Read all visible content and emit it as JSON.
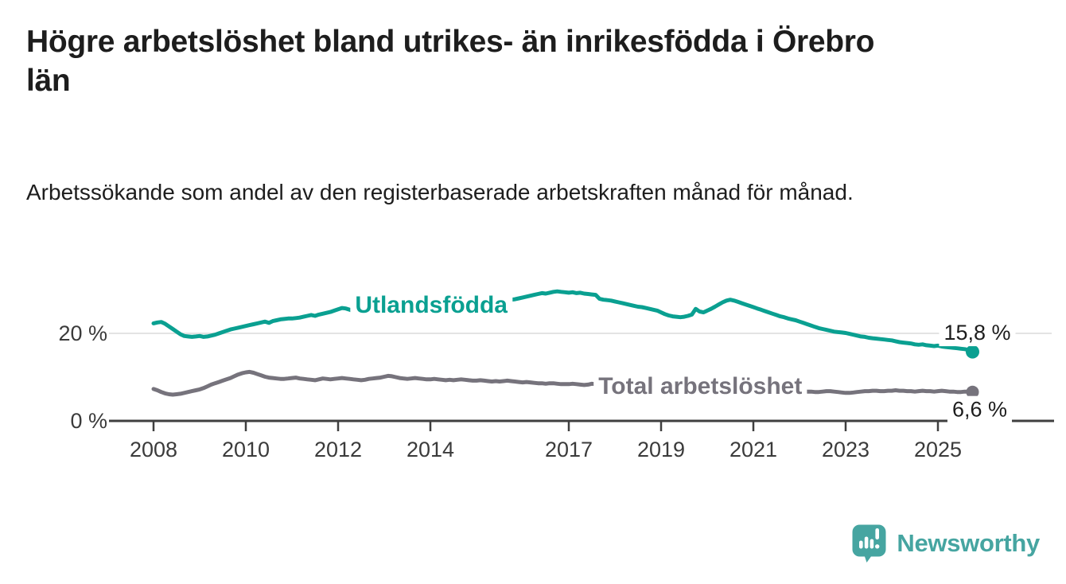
{
  "page": {
    "background": "#ffffff"
  },
  "header": {
    "title": "Högre arbetslöshet bland utrikes- än inrikesfödda i Örebro län",
    "subtitle": "Arbetssökande som andel av den registerbaserade arbetskraften månad för månad."
  },
  "branding": {
    "logo_text": "Newsworthy",
    "logo_icon": "speech-bubble-with-bar-chart-and-exclamation",
    "color": "#46a5a1"
  },
  "chart_data": {
    "type": "line",
    "title": "Högre arbetslöshet bland utrikes- än inrikesfödda i Örebro län",
    "subtitle": "Arbetssökande som andel av den registerbaserade arbetskraften månad för månad.",
    "x_unit": "monthly, Jan 2008 – Oct 2025",
    "x_start": 2008.0,
    "frequency": "monthly",
    "xlim": [
      2007.05,
      2027.5
    ],
    "ylim": [
      0,
      33
    ],
    "x_ticks": [
      {
        "value": 2008,
        "label": "2008"
      },
      {
        "value": 2010,
        "label": "2010"
      },
      {
        "value": 2012,
        "label": "2012"
      },
      {
        "value": 2014,
        "label": "2014"
      },
      {
        "value": 2017,
        "label": "2017"
      },
      {
        "value": 2019,
        "label": "2019"
      },
      {
        "value": 2021,
        "label": "2021"
      },
      {
        "value": 2023,
        "label": "2023"
      },
      {
        "value": 2025,
        "label": "2025"
      }
    ],
    "y_ticks": [
      {
        "value": 0,
        "label": "0 %"
      },
      {
        "value": 20,
        "label": "20 %"
      }
    ],
    "grid": "horizontal-only",
    "legend": "inline-series-labels",
    "axis_color": "#3f3f3f",
    "grid_color": "#e3e3e3",
    "value_label_color": "#1d1d1d",
    "series": [
      {
        "name": "Utlandsfödda",
        "color": "#0aa091",
        "end_label": "15,8 %",
        "end_value": 15.8,
        "label_anchor": {
          "year": 2014.02,
          "value": 26.7
        },
        "values": [
          22.3,
          22.5,
          22.6,
          22.2,
          21.6,
          21.0,
          20.4,
          19.8,
          19.4,
          19.3,
          19.2,
          19.3,
          19.4,
          19.2,
          19.3,
          19.5,
          19.7,
          20.0,
          20.3,
          20.6,
          20.9,
          21.1,
          21.3,
          21.5,
          21.7,
          21.9,
          22.1,
          22.3,
          22.5,
          22.7,
          22.4,
          22.8,
          23.0,
          23.2,
          23.3,
          23.4,
          23.4,
          23.5,
          23.6,
          23.8,
          24.0,
          24.2,
          24.0,
          24.3,
          24.5,
          24.7,
          24.9,
          25.2,
          25.5,
          25.8,
          25.7,
          25.4,
          25.1,
          24.8,
          24.6,
          24.7,
          24.6,
          24.8,
          25.0,
          25.2,
          25.3,
          25.5,
          25.6,
          25.7,
          25.8,
          25.9,
          25.8,
          26.0,
          26.1,
          26.2,
          26.2,
          26.3,
          26.3,
          26.4,
          26.5,
          26.4,
          26.5,
          26.6,
          26.5,
          26.7,
          26.8,
          26.9,
          27.0,
          27.0,
          27.0,
          27.1,
          27.2,
          27.2,
          27.3,
          27.4,
          27.3,
          27.5,
          27.6,
          27.7,
          27.8,
          28.0,
          28.2,
          28.4,
          28.6,
          28.8,
          29.0,
          29.2,
          29.1,
          29.3,
          29.5,
          29.6,
          29.5,
          29.4,
          29.3,
          29.4,
          29.2,
          29.3,
          29.1,
          29.0,
          28.9,
          28.8,
          27.9,
          27.7,
          27.6,
          27.5,
          27.3,
          27.1,
          26.9,
          26.7,
          26.5,
          26.3,
          26.1,
          26.0,
          25.8,
          25.6,
          25.4,
          25.2,
          24.8,
          24.4,
          24.1,
          23.9,
          23.8,
          23.7,
          23.8,
          24.0,
          24.3,
          25.6,
          25.0,
          24.8,
          25.2,
          25.6,
          26.1,
          26.6,
          27.1,
          27.5,
          27.7,
          27.5,
          27.2,
          26.9,
          26.6,
          26.3,
          26.0,
          25.7,
          25.4,
          25.1,
          24.8,
          24.5,
          24.2,
          23.9,
          23.7,
          23.4,
          23.2,
          23.0,
          22.7,
          22.4,
          22.1,
          21.8,
          21.5,
          21.2,
          21.0,
          20.8,
          20.6,
          20.4,
          20.3,
          20.2,
          20.1,
          19.9,
          19.7,
          19.5,
          19.3,
          19.2,
          19.0,
          18.9,
          18.8,
          18.7,
          18.6,
          18.5,
          18.4,
          18.2,
          18.0,
          17.9,
          17.8,
          17.7,
          17.5,
          17.4,
          17.5,
          17.3,
          17.2,
          17.1,
          17.2,
          17.0,
          16.9,
          16.8,
          16.7,
          16.6,
          16.5,
          16.4,
          16.2,
          15.8
        ]
      },
      {
        "name": "Total arbetslöshet",
        "color": "#76737c",
        "end_label": "6,6 %",
        "end_value": 6.6,
        "label_anchor": {
          "year": 2019.85,
          "value": 8.2
        },
        "values": [
          7.3,
          7.0,
          6.6,
          6.3,
          6.1,
          6.0,
          6.1,
          6.2,
          6.4,
          6.6,
          6.8,
          7.0,
          7.2,
          7.5,
          7.9,
          8.3,
          8.6,
          8.9,
          9.2,
          9.5,
          9.8,
          10.2,
          10.6,
          10.9,
          11.1,
          11.2,
          11.0,
          10.7,
          10.4,
          10.1,
          9.9,
          9.8,
          9.7,
          9.6,
          9.6,
          9.7,
          9.8,
          9.9,
          9.7,
          9.6,
          9.5,
          9.4,
          9.3,
          9.5,
          9.7,
          9.6,
          9.5,
          9.6,
          9.7,
          9.8,
          9.7,
          9.6,
          9.5,
          9.4,
          9.3,
          9.4,
          9.6,
          9.7,
          9.8,
          9.9,
          10.1,
          10.3,
          10.2,
          10.0,
          9.8,
          9.7,
          9.6,
          9.7,
          9.8,
          9.7,
          9.6,
          9.5,
          9.5,
          9.6,
          9.5,
          9.4,
          9.3,
          9.4,
          9.3,
          9.4,
          9.5,
          9.4,
          9.3,
          9.2,
          9.2,
          9.3,
          9.2,
          9.1,
          9.0,
          9.1,
          9.0,
          9.1,
          9.2,
          9.1,
          9.0,
          8.9,
          8.8,
          8.9,
          8.8,
          8.7,
          8.6,
          8.6,
          8.5,
          8.6,
          8.6,
          8.5,
          8.4,
          8.4,
          8.4,
          8.5,
          8.4,
          8.3,
          8.2,
          8.3,
          8.5,
          8.4,
          8.3,
          8.2,
          8.1,
          8.0,
          8.0,
          8.1,
          8.0,
          7.9,
          7.8,
          7.7,
          7.6,
          7.7,
          7.8,
          7.7,
          7.6,
          7.5,
          7.5,
          7.6,
          7.5,
          7.4,
          7.5,
          7.6,
          7.7,
          7.8,
          7.9,
          8.0,
          8.1,
          8.2,
          8.4,
          8.7,
          9.1,
          9.4,
          9.6,
          9.7,
          9.6,
          9.4,
          9.2,
          9.0,
          8.8,
          8.6,
          8.4,
          8.2,
          8.0,
          7.8,
          7.6,
          7.4,
          7.3,
          7.2,
          7.1,
          7.0,
          6.9,
          6.9,
          6.8,
          6.8,
          6.7,
          6.7,
          6.6,
          6.6,
          6.7,
          6.8,
          6.8,
          6.7,
          6.6,
          6.5,
          6.4,
          6.4,
          6.5,
          6.6,
          6.7,
          6.8,
          6.8,
          6.9,
          6.9,
          6.8,
          6.8,
          6.9,
          6.9,
          7.0,
          6.9,
          6.9,
          6.8,
          6.8,
          6.7,
          6.8,
          6.9,
          6.8,
          6.8,
          6.7,
          6.8,
          6.9,
          6.8,
          6.7,
          6.7,
          6.6,
          6.6,
          6.7,
          6.7,
          6.6
        ]
      }
    ]
  }
}
